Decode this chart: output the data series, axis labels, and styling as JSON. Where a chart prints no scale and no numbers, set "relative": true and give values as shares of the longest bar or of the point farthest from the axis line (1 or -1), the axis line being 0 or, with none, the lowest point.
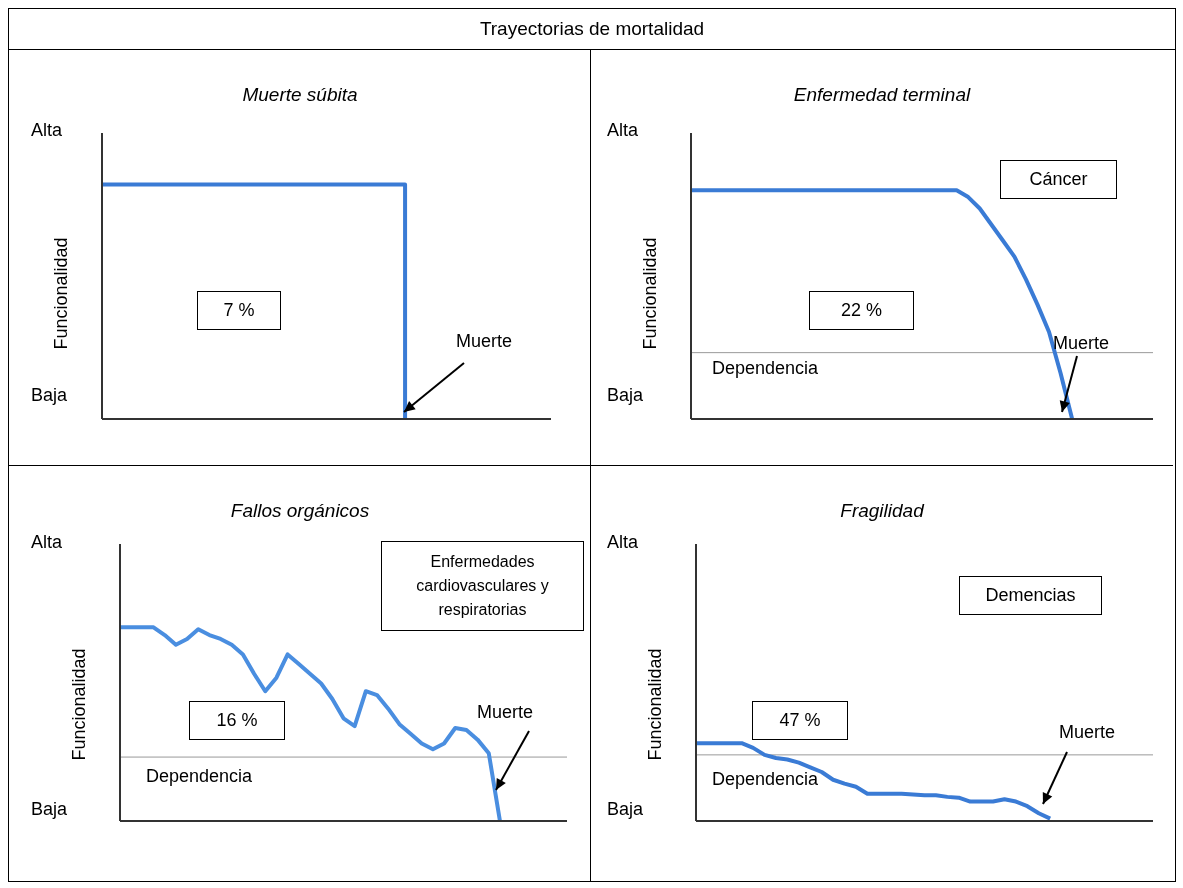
{
  "chart_data": [
    {
      "type": "other",
      "title": "Trayectorias de mortalidad"
    },
    {
      "type": "step",
      "title": "Muerte súbita",
      "ylabel": "Funcionalidad",
      "relative": true,
      "categories": [
        null,
        null,
        null,
        null,
        null,
        null,
        null,
        null,
        null,
        null,
        null,
        null,
        null,
        null,
        null,
        null,
        null,
        null,
        null,
        null,
        null,
        null,
        null,
        null,
        null,
        null,
        null,
        null,
        null,
        null,
        null,
        null,
        null,
        null,
        null,
        null,
        null,
        null,
        null,
        null,
        null
      ],
      "values": [
        1,
        1,
        1,
        1,
        1,
        1,
        1,
        1,
        1,
        1,
        1,
        1,
        1,
        1,
        1,
        1,
        1,
        1,
        1,
        1,
        1,
        1,
        1,
        1,
        1,
        1,
        1,
        0,
        null,
        null,
        null,
        null,
        null,
        null,
        null,
        null,
        null,
        null,
        null,
        null,
        null
      ],
      "color": "#3a7bd5",
      "annotations": [
        "Alta",
        "Baja",
        "7 %",
        "Muerte"
      ]
    },
    {
      "type": "line",
      "title": "Enfermedad terminal",
      "ylabel": "Funcionalidad",
      "relative": true,
      "categories": [
        null,
        null,
        null,
        null,
        null,
        null,
        null,
        null,
        null,
        null,
        null,
        null,
        null,
        null,
        null,
        null,
        null,
        null,
        null,
        null,
        null,
        null,
        null,
        null,
        null,
        null,
        null,
        null,
        null,
        null,
        null,
        null,
        null,
        null,
        null,
        null,
        null,
        null,
        null,
        null,
        null
      ],
      "values": [
        1,
        1,
        1,
        1,
        1,
        1,
        1,
        1,
        1,
        1,
        1,
        1,
        1,
        1,
        1,
        1,
        1,
        1,
        1,
        1,
        1,
        1,
        1,
        1,
        0.97,
        0.92,
        0.85,
        0.78,
        0.71,
        0.61,
        0.5,
        0.38,
        0.2,
        0,
        null,
        null,
        null,
        null,
        null,
        null,
        null
      ],
      "color": "#3a7bd5",
      "ref_lines": [
        {
          "axis": "y",
          "value": 0.29,
          "label": "Dependencia",
          "color": "#999999"
        }
      ],
      "annotations": [
        "Alta",
        "Baja",
        "Cáncer",
        "22 %",
        "Muerte"
      ]
    },
    {
      "type": "line",
      "title": "Fallos orgánicos",
      "ylabel": "Funcionalidad",
      "relative": true,
      "categories": [
        null,
        null,
        null,
        null,
        null,
        null,
        null,
        null,
        null,
        null,
        null,
        null,
        null,
        null,
        null,
        null,
        null,
        null,
        null,
        null,
        null,
        null,
        null,
        null,
        null,
        null,
        null,
        null,
        null,
        null,
        null,
        null,
        null,
        null,
        null,
        null,
        null,
        null,
        null,
        null,
        null
      ],
      "values": [
        1,
        1,
        1,
        1,
        0.96,
        0.91,
        0.94,
        0.99,
        0.96,
        0.94,
        0.91,
        0.86,
        0.76,
        0.67,
        0.74,
        0.86,
        0.81,
        0.76,
        0.71,
        0.63,
        0.53,
        0.49,
        0.67,
        0.65,
        0.58,
        0.5,
        0.45,
        0.4,
        0.37,
        0.4,
        0.48,
        0.47,
        0.42,
        0.35,
        0,
        null,
        null,
        null,
        null,
        null,
        null
      ],
      "color": "#4a8ee0",
      "ref_lines": [
        {
          "axis": "y",
          "value": 0.33,
          "label": "Dependencia",
          "color": "#999999"
        }
      ],
      "annotations": [
        "Alta",
        "Baja",
        "Enfermedades cardiovasculares y respiratorias",
        "16 %",
        "Muerte"
      ]
    },
    {
      "type": "line",
      "title": "Fragilidad",
      "ylabel": "Funcionalidad",
      "relative": true,
      "categories": [
        null,
        null,
        null,
        null,
        null,
        null,
        null,
        null,
        null,
        null,
        null,
        null,
        null,
        null,
        null,
        null,
        null,
        null,
        null,
        null,
        null,
        null,
        null,
        null,
        null,
        null,
        null,
        null,
        null,
        null,
        null,
        null,
        null,
        null,
        null,
        null,
        null,
        null,
        null,
        null,
        null
      ],
      "values": [
        1,
        1,
        1,
        1,
        1,
        0.94,
        0.85,
        0.81,
        0.79,
        0.75,
        0.69,
        0.63,
        0.53,
        0.48,
        0.44,
        0.35,
        0.35,
        0.35,
        0.35,
        0.34,
        0.33,
        0.33,
        0.31,
        0.3,
        0.25,
        0.25,
        0.25,
        0.28,
        0.25,
        0.19,
        0.1,
        0.03,
        null,
        null,
        null,
        null,
        null,
        null,
        null,
        null,
        null
      ],
      "color": "#3a7bd5",
      "ref_lines": [
        {
          "axis": "y",
          "value": 0.85,
          "label": "Dependencia",
          "color": "#999999"
        }
      ],
      "annotations": [
        "Alta",
        "Baja",
        "Demencias",
        "47 %",
        "Muerte"
      ]
    }
  ]
}
